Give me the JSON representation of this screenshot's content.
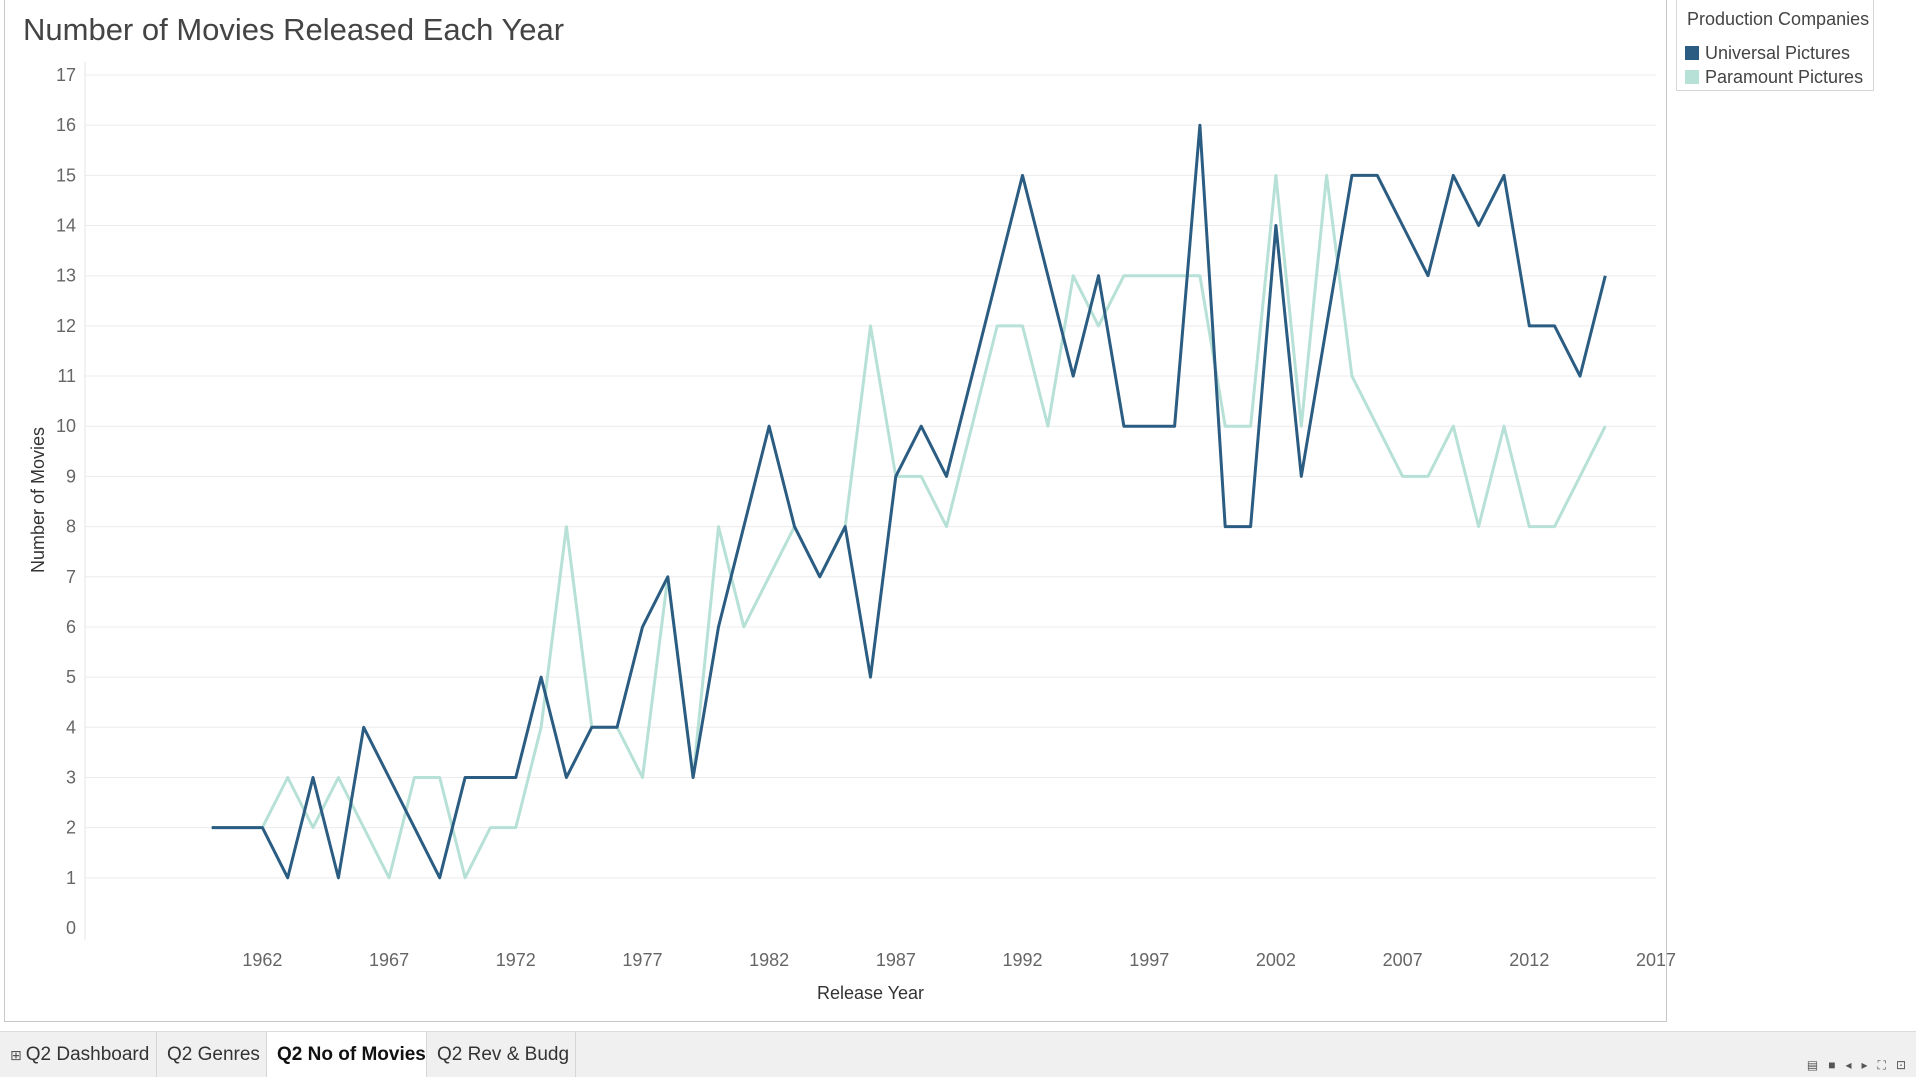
{
  "chart_data": {
    "type": "line",
    "title": "Number of Movies Released Each Year",
    "xlabel": "Release Year",
    "ylabel": "Number of Movies",
    "xlim": [
      1955,
      2017
    ],
    "ylim": [
      0,
      17
    ],
    "x_ticks": [
      1962,
      1967,
      1972,
      1977,
      1982,
      1987,
      1992,
      1997,
      2002,
      2007,
      2012,
      2017
    ],
    "y_ticks": [
      0,
      1,
      2,
      3,
      4,
      5,
      6,
      7,
      8,
      9,
      10,
      11,
      12,
      13,
      14,
      15,
      16,
      17
    ],
    "grid": true,
    "legend_position": "top-right",
    "legend_title": "Production Companies",
    "series": [
      {
        "name": "Universal Pictures",
        "color": "#2b5c82",
        "points": [
          [
            1960,
            2
          ],
          [
            1961,
            2
          ],
          [
            1962,
            2
          ],
          [
            1963,
            1
          ],
          [
            1964,
            3
          ],
          [
            1965,
            1
          ],
          [
            1966,
            4
          ],
          [
            1967,
            3
          ],
          [
            1968,
            2
          ],
          [
            1969,
            1
          ],
          [
            1970,
            3
          ],
          [
            1971,
            3
          ],
          [
            1972,
            3
          ],
          [
            1973,
            5
          ],
          [
            1974,
            3
          ],
          [
            1975,
            4
          ],
          [
            1976,
            4
          ],
          [
            1977,
            6
          ],
          [
            1978,
            7
          ],
          [
            1979,
            3
          ],
          [
            1980,
            6
          ],
          [
            1981,
            8
          ],
          [
            1982,
            10
          ],
          [
            1983,
            8
          ],
          [
            1984,
            7
          ],
          [
            1985,
            8
          ],
          [
            1986,
            5
          ],
          [
            1987,
            9
          ],
          [
            1988,
            10
          ],
          [
            1989,
            9
          ],
          [
            1990,
            11
          ],
          [
            1991,
            13
          ],
          [
            1992,
            15
          ],
          [
            1993,
            13
          ],
          [
            1994,
            11
          ],
          [
            1995,
            13
          ],
          [
            1996,
            10
          ],
          [
            1997,
            10
          ],
          [
            1998,
            10
          ],
          [
            1999,
            16
          ],
          [
            2000,
            8
          ],
          [
            2001,
            8
          ],
          [
            2002,
            14
          ],
          [
            2003,
            9
          ],
          [
            2004,
            12
          ],
          [
            2005,
            15
          ],
          [
            2006,
            15
          ],
          [
            2007,
            14
          ],
          [
            2008,
            13
          ],
          [
            2009,
            15
          ],
          [
            2010,
            14
          ],
          [
            2011,
            15
          ],
          [
            2012,
            12
          ],
          [
            2013,
            12
          ],
          [
            2014,
            11
          ],
          [
            2015,
            13
          ]
        ]
      },
      {
        "name": "Paramount Pictures",
        "color": "#b7e1d6",
        "points": [
          [
            1960,
            2
          ],
          [
            1961,
            2
          ],
          [
            1962,
            2
          ],
          [
            1963,
            3
          ],
          [
            1964,
            2
          ],
          [
            1965,
            3
          ],
          [
            1966,
            2
          ],
          [
            1967,
            1
          ],
          [
            1968,
            3
          ],
          [
            1969,
            3
          ],
          [
            1970,
            1
          ],
          [
            1971,
            2
          ],
          [
            1972,
            2
          ],
          [
            1973,
            4
          ],
          [
            1974,
            8
          ],
          [
            1975,
            4
          ],
          [
            1976,
            4
          ],
          [
            1977,
            3
          ],
          [
            1978,
            7
          ],
          [
            1979,
            3
          ],
          [
            1980,
            8
          ],
          [
            1981,
            6
          ],
          [
            1982,
            7
          ],
          [
            1983,
            8
          ],
          [
            1984,
            7
          ],
          [
            1985,
            8
          ],
          [
            1986,
            12
          ],
          [
            1987,
            9
          ],
          [
            1988,
            9
          ],
          [
            1989,
            8
          ],
          [
            1990,
            10
          ],
          [
            1991,
            12
          ],
          [
            1992,
            12
          ],
          [
            1993,
            10
          ],
          [
            1994,
            13
          ],
          [
            1995,
            12
          ],
          [
            1996,
            13
          ],
          [
            1997,
            13
          ],
          [
            1998,
            13
          ],
          [
            1999,
            13
          ],
          [
            2000,
            10
          ],
          [
            2001,
            10
          ],
          [
            2002,
            15
          ],
          [
            2003,
            10
          ],
          [
            2004,
            15
          ],
          [
            2005,
            11
          ],
          [
            2006,
            10
          ],
          [
            2007,
            9
          ],
          [
            2008,
            9
          ],
          [
            2009,
            10
          ],
          [
            2010,
            8
          ],
          [
            2011,
            10
          ],
          [
            2012,
            8
          ],
          [
            2013,
            8
          ],
          [
            2014,
            9
          ],
          [
            2015,
            10
          ]
        ]
      }
    ]
  },
  "tabs": [
    {
      "label": "Q2 Dashboard",
      "active": false
    },
    {
      "label": "Q2 Genres",
      "active": false
    },
    {
      "label": "Q2 No of Movies",
      "active": true
    },
    {
      "label": "Q2 Rev & Budg",
      "active": false
    }
  ],
  "tab_icon": "grid-icon",
  "nav_icons": [
    "grid-view-icon",
    "single-view-icon",
    "prev-icon",
    "next-icon",
    "fullscreen-icon",
    "present-icon"
  ]
}
